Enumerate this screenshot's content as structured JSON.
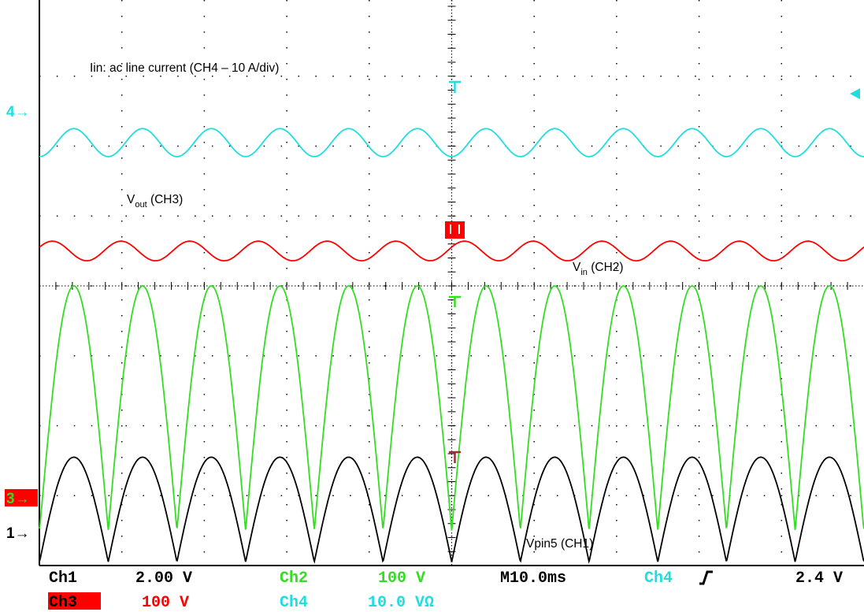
{
  "colors": {
    "ch1": "#000000",
    "ch2": "#33dd22",
    "ch3": "#ff0000",
    "ch4": "#22dde0",
    "grid": "#000000"
  },
  "chart_data": {
    "type": "line",
    "grid": true,
    "divisions": {
      "x": 10,
      "y": 8
    },
    "x_range_ms": [
      -50,
      50
    ],
    "x_units": "ms",
    "line_frequency_hz": 60,
    "series": [
      {
        "name": "Iin: ac line current (CH4 – 10 A/div)",
        "channel": "CH4",
        "color": "#22dde0",
        "shape": "rectified-sine ripple",
        "period_ms": 8.33,
        "reference_div": 6.0,
        "low_div": 5.85,
        "peak_div": 6.25
      },
      {
        "name": "Vout (CH3)",
        "channel": "CH3",
        "color": "#ff0000",
        "shape": "sinusoidal ripple",
        "period_ms": 8.33,
        "reference_div": 0.5,
        "center_div": 4.5,
        "ripple_pp_div": 0.28
      },
      {
        "name": "Vin (CH2)",
        "channel": "CH2",
        "color": "#33dd22",
        "shape": "full-wave rectified sine",
        "period_ms": 8.33,
        "reference_div": 0.5,
        "peak_div": 4.0,
        "low_div": 0.5
      },
      {
        "name": "Vpin5 (CH1)",
        "channel": "CH1",
        "color": "#000000",
        "shape": "full-wave rectified sine with offset",
        "period_ms": 8.33,
        "reference_div": 0.0,
        "peak_div": 1.55,
        "low_div": 0.05
      }
    ],
    "annotations": {
      "iin": "Iin: ac line current (CH4 – 10 A/div)",
      "vout_main": "V",
      "vout_sub": "out",
      "vout_tail": " (CH3)",
      "vin_main": "V",
      "vin_sub": "in",
      "vin_tail": " (CH2)",
      "vpin5": "Vpin5 (CH1)"
    },
    "markers": {
      "ch4": "4→",
      "ch3": "3→",
      "ch1": "1→"
    },
    "status": {
      "ch1_label": "Ch1",
      "ch1_scale": "2.00 V",
      "ch2_label": "Ch2",
      "ch2_scale": "100 V",
      "timebase": "M10.0ms",
      "trigger_source": "Ch4",
      "trigger_slope": "ʃ",
      "trigger_level": "2.4 V",
      "ch3_label": "Ch3",
      "ch3_scale": "100 V",
      "ch4_label": "Ch4",
      "ch4_scale": "10.0 VΩ"
    }
  }
}
